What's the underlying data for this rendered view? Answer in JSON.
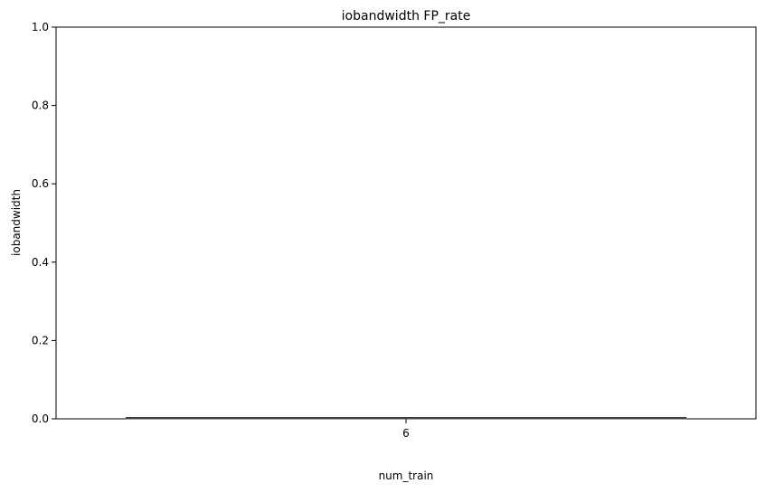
{
  "chart_data": {
    "type": "bar",
    "title": "iobandwidth FP_rate",
    "xlabel": "num_train",
    "ylabel": "iobandwidth",
    "categories": [
      "6"
    ],
    "values": [
      0.003
    ],
    "ylim": [
      0,
      1.0
    ],
    "yticks": [
      "0.0",
      "0.2",
      "0.4",
      "0.6",
      "0.8",
      "1.0"
    ],
    "grid": false,
    "bar_color": "#4a4a4a"
  }
}
